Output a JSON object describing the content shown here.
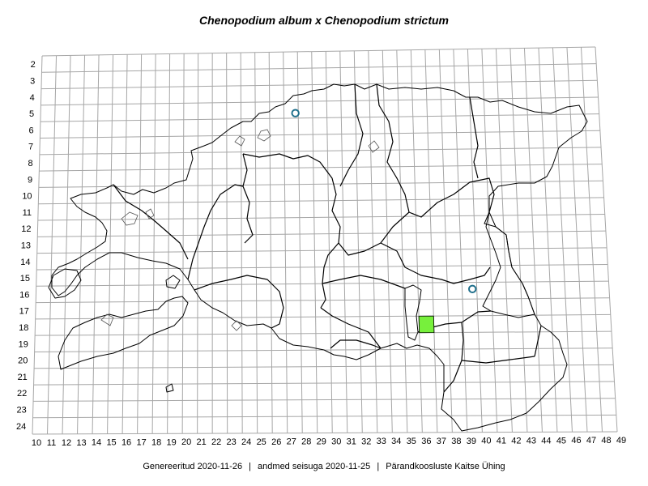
{
  "title": "Chenopodium album x Chenopodium strictum",
  "footer": {
    "generated": "Genereeritud 2020-11-26",
    "data_state": "andmed seisuga 2020-11-25",
    "organization": "Pärandkoosluste Kaitse Ühing",
    "separator": "|"
  },
  "grid": {
    "columns": [
      10,
      11,
      12,
      13,
      14,
      15,
      16,
      17,
      18,
      19,
      20,
      21,
      22,
      23,
      24,
      25,
      26,
      27,
      28,
      29,
      30,
      31,
      32,
      33,
      34,
      35,
      36,
      37,
      38,
      39,
      40,
      41,
      42,
      43,
      44,
      45,
      46,
      47,
      48,
      49
    ],
    "rows": [
      2,
      3,
      4,
      5,
      6,
      7,
      8,
      9,
      10,
      11,
      12,
      13,
      14,
      15,
      16,
      17,
      18,
      19,
      20,
      21,
      22,
      23,
      24
    ]
  },
  "records": [
    {
      "type": "old-record",
      "col": 27.8,
      "row": 5.7
    },
    {
      "type": "old-record",
      "col": 39.7,
      "row": 16.4
    },
    {
      "type": "confirmed-square",
      "col": 36,
      "row": 18
    }
  ],
  "colors": {
    "grid": "#a6a6a6",
    "outline": "#000000",
    "marker_stroke": "#1f6f8b",
    "square_fill": "#77f03c"
  }
}
